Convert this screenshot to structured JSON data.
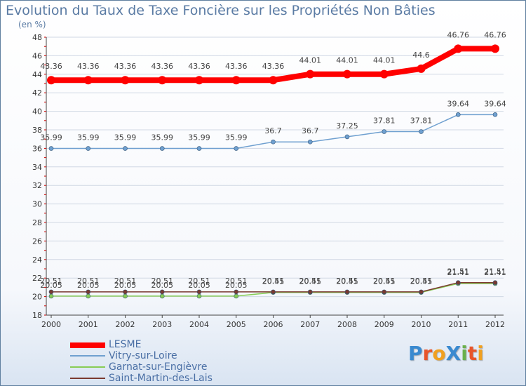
{
  "title": "Evolution du Taux de Taxe Foncière sur les Propriétés Non Bâties",
  "unit": "(en %)",
  "brand": "ProXiti",
  "chart_data": {
    "type": "line",
    "title": "Evolution du Taux de Taxe Foncière sur les Propriétés Non Bâties",
    "ylabel": "(en %)",
    "xlabel": "",
    "ylim": [
      18,
      48
    ],
    "yticks": [
      18,
      20,
      22,
      24,
      26,
      28,
      30,
      32,
      34,
      36,
      38,
      40,
      42,
      44,
      46,
      48
    ],
    "categories": [
      "2000",
      "2001",
      "2002",
      "2003",
      "2004",
      "2005",
      "2006",
      "2007",
      "2008",
      "2009",
      "2010",
      "2011",
      "2012"
    ],
    "series": [
      {
        "name": "LESME",
        "color": "#ff0000",
        "values": [
          43.36,
          43.36,
          43.36,
          43.36,
          43.36,
          43.36,
          43.36,
          44.01,
          44.01,
          44.01,
          44.6,
          46.76,
          46.76
        ],
        "labels": [
          "43.36",
          "43.36",
          "43.36",
          "43.36",
          "43.36",
          "43.36",
          "43.36",
          "44.01",
          "44.01",
          "44.01",
          "44.6",
          "46.76",
          "46.76"
        ]
      },
      {
        "name": "Vitry-sur-Loire",
        "color": "#6fa0d0",
        "values": [
          35.99,
          35.99,
          35.99,
          35.99,
          35.99,
          35.99,
          36.7,
          36.7,
          37.25,
          37.81,
          37.81,
          39.64,
          39.64
        ],
        "labels": [
          "35.99",
          "35.99",
          "35.99",
          "35.99",
          "35.99",
          "35.99",
          "36.7",
          "36.7",
          "37.25",
          "37.81",
          "37.81",
          "39.64",
          "39.64"
        ]
      },
      {
        "name": "Garnat-sur-Engièvre",
        "color": "#88cc55",
        "values": [
          20.05,
          20.05,
          20.05,
          20.05,
          20.05,
          20.05,
          20.45,
          20.45,
          20.45,
          20.45,
          20.45,
          21.41,
          21.41
        ],
        "labels": [
          "20.05",
          "20.05",
          "20.05",
          "20.05",
          "20.05",
          "20.05",
          "20.45",
          "20.45",
          "20.45",
          "20.45",
          "20.45",
          "21.41",
          "21.41"
        ]
      },
      {
        "name": "Saint-Martin-des-Lais",
        "color": "#7a3a30",
        "values": [
          20.51,
          20.51,
          20.51,
          20.51,
          20.51,
          20.51,
          20.51,
          20.51,
          20.51,
          20.51,
          20.51,
          21.51,
          21.51
        ],
        "labels": [
          "20.51",
          "20.51",
          "20.51",
          "20.51",
          "20.51",
          "20.51",
          "20.51",
          "20.51",
          "20.51",
          "20.51",
          "20.51",
          "21.51",
          "21.51"
        ]
      }
    ]
  }
}
